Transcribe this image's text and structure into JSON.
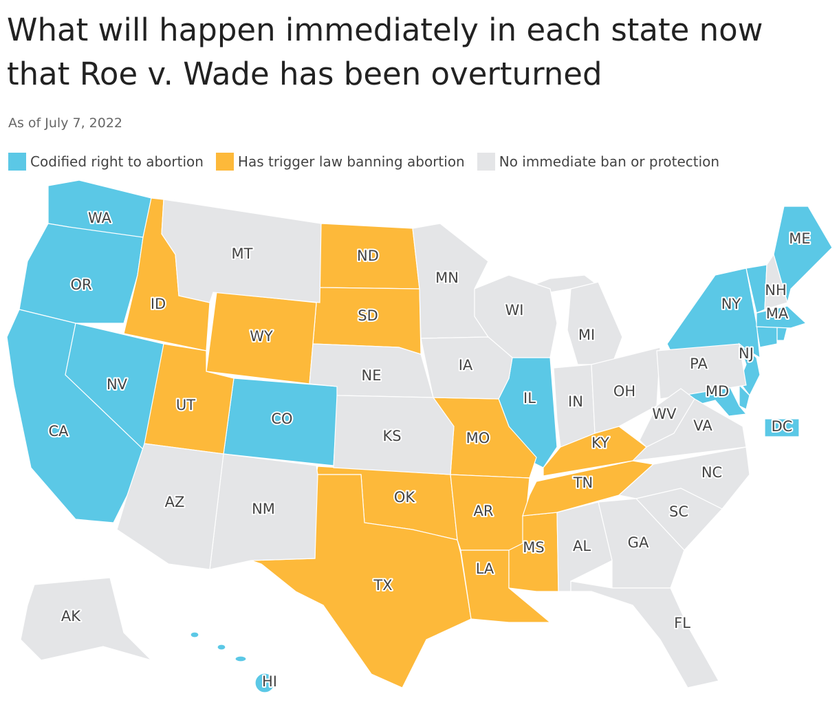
{
  "header": {
    "title": "What will happen immediately in each state now that Roe v. Wade has been overturned",
    "subtitle": "As of July 7, 2022"
  },
  "legend": [
    {
      "name": "Codified right to abortion",
      "color": "#5bc8e6",
      "states": [
        "WA",
        "OR",
        "CA",
        "NV",
        "CO",
        "IL",
        "NY",
        "ME",
        "MA",
        "NJ",
        "MD",
        "HI",
        "DC"
      ]
    },
    {
      "name": "Has trigger law banning abortion",
      "color": "#fdb93a",
      "states": [
        "ID",
        "ND",
        "SD",
        "WY",
        "UT",
        "MO",
        "OK",
        "TX",
        "AR",
        "LA",
        "MS",
        "TN",
        "KY"
      ]
    },
    {
      "name": "No immediate ban or protection",
      "color": "#e4e5e7",
      "states": [
        "MT",
        "MN",
        "WI",
        "MI",
        "IA",
        "NE",
        "KS",
        "IN",
        "OH",
        "PA",
        "WV",
        "VA",
        "NC",
        "SC",
        "GA",
        "AL",
        "FL",
        "NM",
        "AZ",
        "NH",
        "AK"
      ]
    }
  ]
}
